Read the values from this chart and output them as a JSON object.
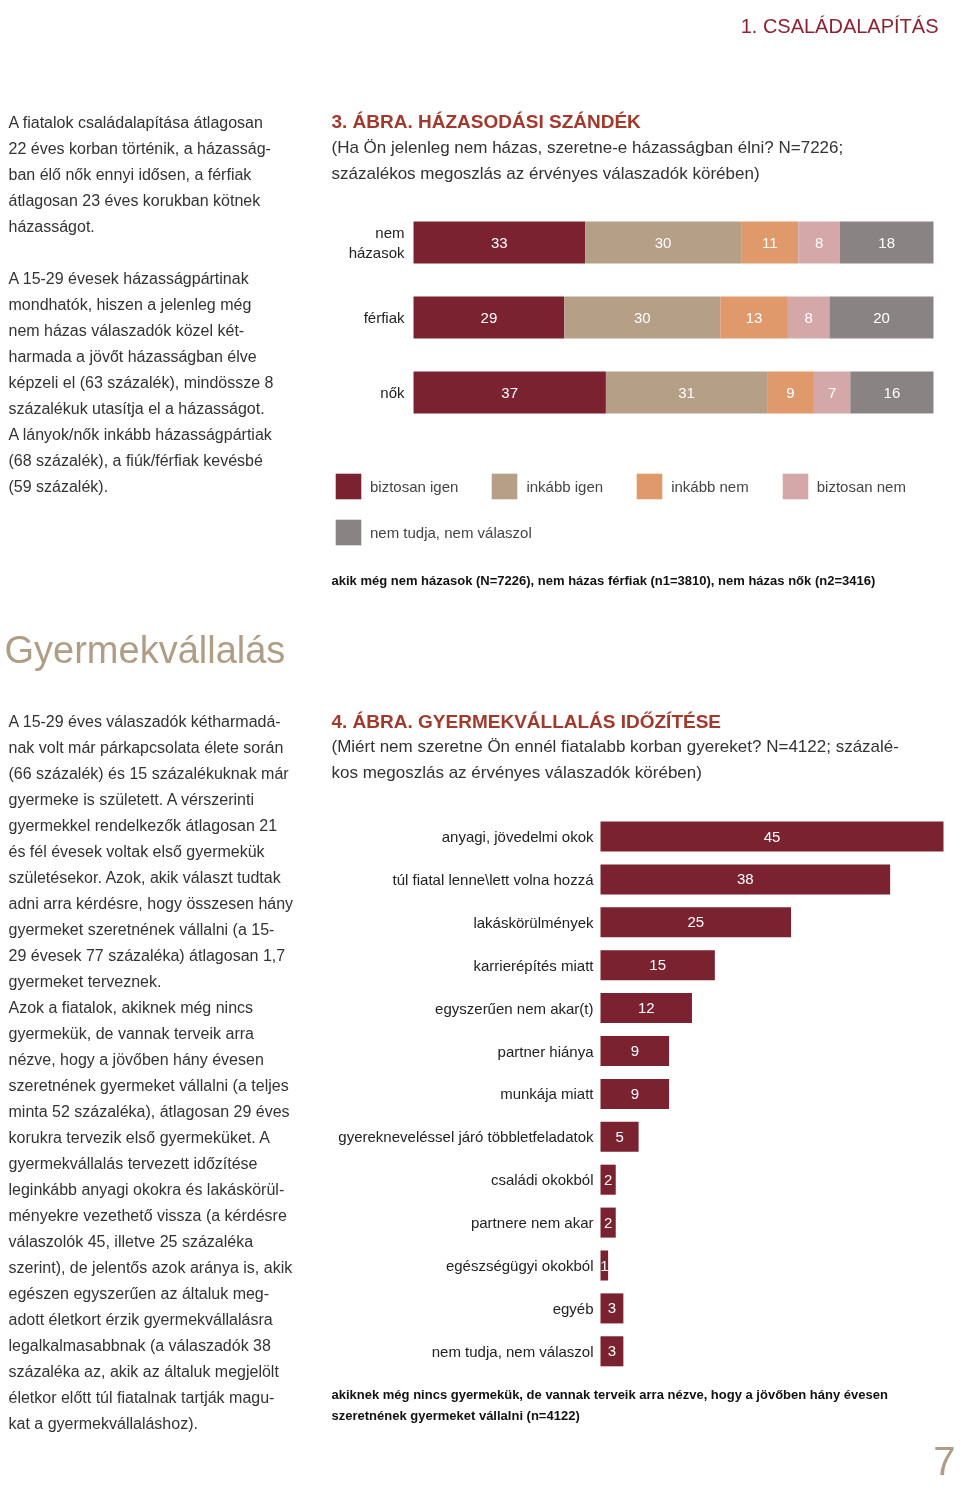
{
  "chart_data": [
    {
      "type": "other",
      "title": "1. CSALÁDALAPÍTÁS"
    },
    {
      "type": "other",
      "annotations": [
        "A fiatalok családalapítása átlagosan\n22 éves korban történik, a házasság-\nban élő nők ennyi idősen, a férfiak\nátlagosan 23 éves korukban kötnek\nházasságot.",
        "   A 15-29 évesek házasságpártinak\nmondhatók, hiszen a jelenleg még\nnem házas válaszadók közel két-\nharmada a jövőt házasságban élve\nképzeli el (63 százalék), mindössze 8\nszázalékuk utasítja el a házasságot.\nA lányok/nők inkább házasságpártiak\n(68 százalék), a fiúk/férfiak kevésbé\n(59 százalék)."
      ]
    },
    {
      "type": "bar",
      "orientation": "horizontal",
      "stacked": true,
      "data_labels": true,
      "legend": "bottom",
      "title": "3. ÁBRA. HÁZASODÁSI SZÁNDÉK",
      "subtitle": "(Ha Ön jelenleg nem házas, szeretne-e házasságban élni? N=7226;\nszázalékos megoszlás az érvényes válaszadók körében)",
      "categories": [
        "nem\nházasok",
        "férfiak",
        "nők"
      ],
      "series": [
        {
          "name": "biztosan igen",
          "color": "#7b2230",
          "values": [
            33,
            29,
            37
          ]
        },
        {
          "name": "inkább igen",
          "color": "#b59f87",
          "values": [
            30,
            30,
            31
          ]
        },
        {
          "name": "inkább nem",
          "color": "#e0996a",
          "values": [
            11,
            13,
            9
          ]
        },
        {
          "name": "biztosan nem",
          "color": "#d4a7a9",
          "values": [
            8,
            8,
            7
          ]
        },
        {
          "name": "nem tudja, nem válaszol",
          "color": "#8a8384",
          "values": [
            18,
            20,
            16
          ]
        }
      ],
      "annotations": [
        "akik még nem házasok (N=7226), nem házas férfiak (n1=3810), nem házas nők (n2=3416)"
      ]
    },
    {
      "type": "other",
      "title": "Gyermekvállalás",
      "annotations": [
        "A 15-29 éves válaszadók kétharmadá-\nnak volt már párkapcsolata élete során\n(66 százalék) és 15 százalékuknak már\ngyermeke is született. A vérszerinti\ngyermekkel rendelkezők átlagosan 21\nés fél évesek voltak első gyermekük\nszületésekor. Azok, akik választ tudtak\nadni arra kérdésre, hogy összesen hány\ngyermeket szeretnének vállalni (a 15-\n29 évesek 77 százaléka) átlagosan 1,7\ngyermeket terveznek.",
        "   Azok a fiatalok, akiknek még nincs\ngyermekük, de vannak terveik arra\nnézve, hogy a jövőben hány évesen\nszeretnének gyermeket vállalni (a teljes\nminta 52 százaléka), átlagosan 29 éves\nkorukra tervezik első gyermeküket. A\ngyermekvállalás tervezett időzítése\nleginkább anyagi okokra és lakáskörül-\nményekre vezethető vissza (a kérdésre\nválaszolók 45, illetve 25 százaléka\nszerint), de jelentős azok aránya is, akik\negészen egyszerűen az általuk meg-\nadott életkort érzik gyermekvállalásra\nlegalkalmasabbnak (a válaszadók 38\nszázaléka az, akik az általuk megjelölt\néletkor előtt túl fiatalnak tartják magu-\nkat a gyermekvállaláshoz)."
      ]
    },
    {
      "type": "bar",
      "orientation": "horizontal",
      "data_labels": true,
      "title": "4. ÁBRA. GYERMEKVÁLLALÁS IDŐZÍTÉSE",
      "subtitle": "(Miért nem szeretne Ön ennél fiatalabb korban gyereket? N=4122; százalé-\nkos megoszlás az érvényes válaszadók körében)",
      "color": "#7b2230",
      "categories": [
        "anyagi, jövedelmi okok",
        "túl fiatal lenne\\lett volna hozzá",
        "lakáskörülmények",
        "karrierépítés miatt",
        "egyszerűen nem akar(t)",
        "partner hiánya",
        "munkája miatt",
        "gyerekneveléssel járó többletfeladatok",
        "családi okokból",
        "partnere nem akar",
        "egészségügyi okokból",
        "egyéb",
        "nem tudja, nem válaszol"
      ],
      "values": [
        45,
        38,
        25,
        15,
        12,
        9,
        9,
        5,
        2,
        2,
        1,
        3,
        3
      ],
      "annotations": [
        "akiknek még nincs gyermekük, de vannak terveik arra nézve, hogy a jövőben hány évesen\nszeretnének gyermeket vállalni (n=4122)"
      ]
    },
    {
      "type": "other",
      "annotations": [
        "7"
      ]
    }
  ]
}
